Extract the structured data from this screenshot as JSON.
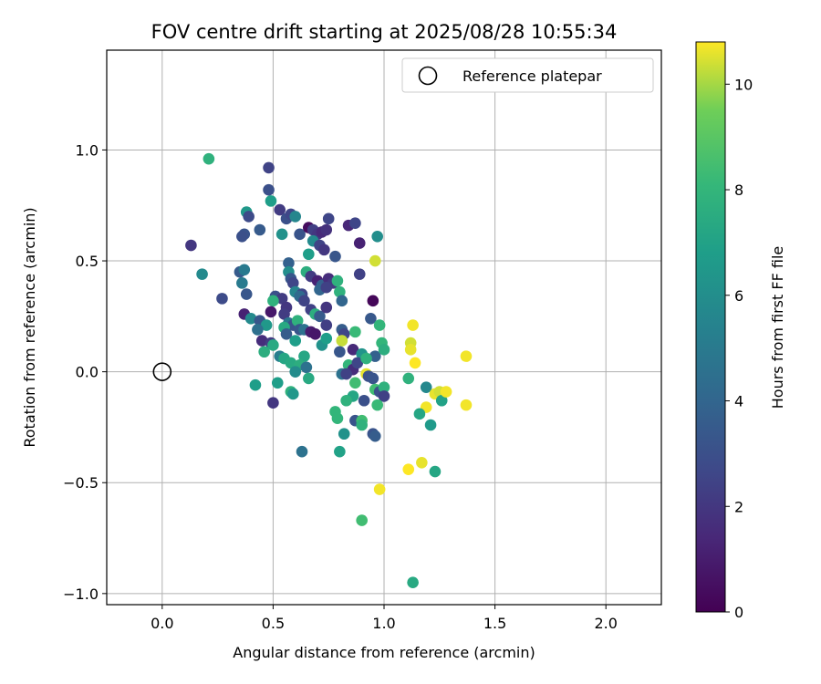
{
  "chart_data": {
    "type": "scatter",
    "title": "FOV centre drift starting at 2025/08/28 10:55:34",
    "xlabel": "Angular distance from reference (arcmin)",
    "ylabel": "Rotation from reference (arcmin)",
    "xlim": [
      -0.25,
      2.25
    ],
    "ylim": [
      -1.05,
      1.45
    ],
    "xticks": [
      0.0,
      0.5,
      1.0,
      1.5,
      2.0
    ],
    "xtick_labels": [
      "0.0",
      "0.5",
      "1.0",
      "1.5",
      "2.0"
    ],
    "yticks": [
      -1.0,
      -0.5,
      0.0,
      0.5,
      1.0
    ],
    "ytick_labels": [
      "−1.0",
      "−0.5",
      "0.0",
      "0.5",
      "1.0"
    ],
    "grid": true,
    "legend": {
      "location": "top-right",
      "entries": [
        "Reference platepar"
      ]
    },
    "reference_point": {
      "x": 0.0,
      "y": 0.0,
      "label": "Reference platepar"
    },
    "colorbar": {
      "label": "Hours from first FF file",
      "colormap": "viridis",
      "min": 0,
      "max": 10.8,
      "ticks": [
        0,
        2,
        4,
        6,
        8,
        10
      ],
      "tick_labels": [
        "0",
        "2",
        "4",
        "6",
        "8",
        "10"
      ]
    },
    "points": [
      {
        "x": 0.21,
        "y": 0.96,
        "h": 7.8
      },
      {
        "x": 0.48,
        "y": 0.92,
        "h": 2.5
      },
      {
        "x": 0.49,
        "y": 0.77,
        "h": 6.8
      },
      {
        "x": 0.48,
        "y": 0.82,
        "h": 3.0
      },
      {
        "x": 0.38,
        "y": 0.72,
        "h": 6.5
      },
      {
        "x": 0.39,
        "y": 0.7,
        "h": 2.8
      },
      {
        "x": 0.53,
        "y": 0.73,
        "h": 2.2
      },
      {
        "x": 0.56,
        "y": 0.69,
        "h": 3.0
      },
      {
        "x": 0.58,
        "y": 0.71,
        "h": 2.6
      },
      {
        "x": 0.6,
        "y": 0.7,
        "h": 5.6
      },
      {
        "x": 0.62,
        "y": 0.62,
        "h": 3.2
      },
      {
        "x": 0.44,
        "y": 0.64,
        "h": 3.5
      },
      {
        "x": 0.37,
        "y": 0.62,
        "h": 3.2
      },
      {
        "x": 0.36,
        "y": 0.61,
        "h": 3.0
      },
      {
        "x": 0.54,
        "y": 0.62,
        "h": 6.2
      },
      {
        "x": 0.13,
        "y": 0.57,
        "h": 2.0
      },
      {
        "x": 0.66,
        "y": 0.65,
        "h": 0.4
      },
      {
        "x": 0.68,
        "y": 0.64,
        "h": 2.3
      },
      {
        "x": 0.7,
        "y": 0.62,
        "h": 2.0
      },
      {
        "x": 0.72,
        "y": 0.63,
        "h": 1.5
      },
      {
        "x": 0.74,
        "y": 0.64,
        "h": 1.8
      },
      {
        "x": 0.75,
        "y": 0.69,
        "h": 2.6
      },
      {
        "x": 0.84,
        "y": 0.66,
        "h": 1.4
      },
      {
        "x": 0.87,
        "y": 0.67,
        "h": 2.6
      },
      {
        "x": 0.97,
        "y": 0.61,
        "h": 6.0
      },
      {
        "x": 0.89,
        "y": 0.58,
        "h": 1.2
      },
      {
        "x": 0.68,
        "y": 0.59,
        "h": 5.8
      },
      {
        "x": 0.71,
        "y": 0.57,
        "h": 2.5
      },
      {
        "x": 0.73,
        "y": 0.55,
        "h": 2.0
      },
      {
        "x": 0.66,
        "y": 0.53,
        "h": 6.8
      },
      {
        "x": 0.78,
        "y": 0.52,
        "h": 3.3
      },
      {
        "x": 0.96,
        "y": 0.5,
        "h": 10.4
      },
      {
        "x": 0.57,
        "y": 0.49,
        "h": 3.8
      },
      {
        "x": 0.18,
        "y": 0.44,
        "h": 5.8
      },
      {
        "x": 0.35,
        "y": 0.45,
        "h": 3.5
      },
      {
        "x": 0.37,
        "y": 0.46,
        "h": 5.0
      },
      {
        "x": 0.57,
        "y": 0.45,
        "h": 6.0
      },
      {
        "x": 0.58,
        "y": 0.42,
        "h": 3.3
      },
      {
        "x": 0.59,
        "y": 0.4,
        "h": 2.6
      },
      {
        "x": 0.65,
        "y": 0.45,
        "h": 7.6
      },
      {
        "x": 0.67,
        "y": 0.43,
        "h": 2.2
      },
      {
        "x": 0.7,
        "y": 0.41,
        "h": 1.2
      },
      {
        "x": 0.72,
        "y": 0.39,
        "h": 3.8
      },
      {
        "x": 0.75,
        "y": 0.42,
        "h": 1.6
      },
      {
        "x": 0.77,
        "y": 0.4,
        "h": 2.1
      },
      {
        "x": 0.79,
        "y": 0.41,
        "h": 7.8
      },
      {
        "x": 0.89,
        "y": 0.44,
        "h": 2.4
      },
      {
        "x": 0.36,
        "y": 0.4,
        "h": 5.0
      },
      {
        "x": 0.6,
        "y": 0.36,
        "h": 5.5
      },
      {
        "x": 0.63,
        "y": 0.35,
        "h": 2.6
      },
      {
        "x": 0.71,
        "y": 0.37,
        "h": 4.0
      },
      {
        "x": 0.74,
        "y": 0.38,
        "h": 2.4
      },
      {
        "x": 0.8,
        "y": 0.36,
        "h": 7.8
      },
      {
        "x": 0.38,
        "y": 0.35,
        "h": 3.3
      },
      {
        "x": 0.27,
        "y": 0.33,
        "h": 2.8
      },
      {
        "x": 0.51,
        "y": 0.34,
        "h": 3.0
      },
      {
        "x": 0.54,
        "y": 0.33,
        "h": 2.2
      },
      {
        "x": 0.5,
        "y": 0.32,
        "h": 7.8
      },
      {
        "x": 0.62,
        "y": 0.34,
        "h": 4.2
      },
      {
        "x": 0.64,
        "y": 0.32,
        "h": 2.5
      },
      {
        "x": 0.81,
        "y": 0.32,
        "h": 4.0
      },
      {
        "x": 0.95,
        "y": 0.32,
        "h": 0.2
      },
      {
        "x": 0.56,
        "y": 0.29,
        "h": 2.0
      },
      {
        "x": 0.67,
        "y": 0.28,
        "h": 2.4
      },
      {
        "x": 0.69,
        "y": 0.26,
        "h": 7.6
      },
      {
        "x": 0.71,
        "y": 0.25,
        "h": 3.5
      },
      {
        "x": 0.74,
        "y": 0.29,
        "h": 1.9
      },
      {
        "x": 0.37,
        "y": 0.26,
        "h": 1.2
      },
      {
        "x": 0.4,
        "y": 0.24,
        "h": 5.8
      },
      {
        "x": 0.44,
        "y": 0.23,
        "h": 3.3
      },
      {
        "x": 0.47,
        "y": 0.21,
        "h": 6.5
      },
      {
        "x": 0.49,
        "y": 0.27,
        "h": 0.8
      },
      {
        "x": 0.55,
        "y": 0.26,
        "h": 2.2
      },
      {
        "x": 0.57,
        "y": 0.22,
        "h": 4.8
      },
      {
        "x": 0.59,
        "y": 0.21,
        "h": 3.1
      },
      {
        "x": 0.61,
        "y": 0.23,
        "h": 7.8
      },
      {
        "x": 0.43,
        "y": 0.19,
        "h": 4.5
      },
      {
        "x": 0.55,
        "y": 0.2,
        "h": 7.4
      },
      {
        "x": 0.56,
        "y": 0.17,
        "h": 3.6
      },
      {
        "x": 0.62,
        "y": 0.19,
        "h": 3.3
      },
      {
        "x": 0.64,
        "y": 0.19,
        "h": 4.6
      },
      {
        "x": 0.67,
        "y": 0.18,
        "h": 1.0
      },
      {
        "x": 0.69,
        "y": 0.17,
        "h": 0.8
      },
      {
        "x": 0.74,
        "y": 0.21,
        "h": 2.3
      },
      {
        "x": 0.81,
        "y": 0.19,
        "h": 3.6
      },
      {
        "x": 0.82,
        "y": 0.17,
        "h": 2.6
      },
      {
        "x": 0.87,
        "y": 0.18,
        "h": 8.2
      },
      {
        "x": 0.94,
        "y": 0.24,
        "h": 3.4
      },
      {
        "x": 0.98,
        "y": 0.21,
        "h": 8.0
      },
      {
        "x": 0.45,
        "y": 0.14,
        "h": 1.6
      },
      {
        "x": 0.6,
        "y": 0.14,
        "h": 6.8
      },
      {
        "x": 0.72,
        "y": 0.12,
        "h": 6.2
      },
      {
        "x": 0.74,
        "y": 0.15,
        "h": 6.8
      },
      {
        "x": 0.81,
        "y": 0.14,
        "h": 10.3
      },
      {
        "x": 0.49,
        "y": 0.13,
        "h": 2.2
      },
      {
        "x": 0.5,
        "y": 0.12,
        "h": 7.4
      },
      {
        "x": 0.46,
        "y": 0.09,
        "h": 7.6
      },
      {
        "x": 0.53,
        "y": 0.07,
        "h": 5.2
      },
      {
        "x": 0.55,
        "y": 0.06,
        "h": 7.2
      },
      {
        "x": 0.64,
        "y": 0.07,
        "h": 7.2
      },
      {
        "x": 0.8,
        "y": 0.09,
        "h": 3.3
      },
      {
        "x": 0.86,
        "y": 0.1,
        "h": 1.5
      },
      {
        "x": 0.9,
        "y": 0.08,
        "h": 6.3
      },
      {
        "x": 0.96,
        "y": 0.07,
        "h": 3.8
      },
      {
        "x": 0.99,
        "y": 0.13,
        "h": 8.0
      },
      {
        "x": 1.0,
        "y": 0.1,
        "h": 7.6
      },
      {
        "x": 0.58,
        "y": 0.04,
        "h": 7.4
      },
      {
        "x": 0.62,
        "y": 0.03,
        "h": 7.6
      },
      {
        "x": 0.6,
        "y": 0.0,
        "h": 5.9
      },
      {
        "x": 0.65,
        "y": 0.02,
        "h": 4.6
      },
      {
        "x": 0.84,
        "y": 0.03,
        "h": 8.0
      },
      {
        "x": 0.86,
        "y": 0.01,
        "h": 1.6
      },
      {
        "x": 0.88,
        "y": 0.04,
        "h": 2.6
      },
      {
        "x": 0.92,
        "y": 0.06,
        "h": 7.8
      },
      {
        "x": 0.81,
        "y": -0.01,
        "h": 4.6
      },
      {
        "x": 0.83,
        "y": -0.01,
        "h": 2.4
      },
      {
        "x": 0.92,
        "y": -0.01,
        "h": 10.6
      },
      {
        "x": 0.42,
        "y": -0.06,
        "h": 6.8
      },
      {
        "x": 0.52,
        "y": -0.05,
        "h": 6.8
      },
      {
        "x": 0.66,
        "y": -0.03,
        "h": 7.4
      },
      {
        "x": 0.87,
        "y": -0.05,
        "h": 8.4
      },
      {
        "x": 0.93,
        "y": -0.02,
        "h": 3.0
      },
      {
        "x": 0.95,
        "y": -0.03,
        "h": 3.2
      },
      {
        "x": 0.96,
        "y": -0.08,
        "h": 8.4
      },
      {
        "x": 0.98,
        "y": -0.09,
        "h": 3.0
      },
      {
        "x": 1.0,
        "y": -0.07,
        "h": 7.8
      },
      {
        "x": 1.0,
        "y": -0.11,
        "h": 2.4
      },
      {
        "x": 0.58,
        "y": -0.09,
        "h": 7.8
      },
      {
        "x": 0.59,
        "y": -0.1,
        "h": 6.5
      },
      {
        "x": 0.86,
        "y": -0.11,
        "h": 7.2
      },
      {
        "x": 0.5,
        "y": -0.14,
        "h": 2.0
      },
      {
        "x": 0.83,
        "y": -0.13,
        "h": 7.8
      },
      {
        "x": 0.91,
        "y": -0.13,
        "h": 3.0
      },
      {
        "x": 0.97,
        "y": -0.15,
        "h": 8.2
      },
      {
        "x": 1.11,
        "y": -0.03,
        "h": 7.8
      },
      {
        "x": 1.12,
        "y": 0.13,
        "h": 10.4
      },
      {
        "x": 1.12,
        "y": 0.1,
        "h": 10.6
      },
      {
        "x": 1.13,
        "y": 0.21,
        "h": 10.7
      },
      {
        "x": 1.14,
        "y": 0.04,
        "h": 10.8
      },
      {
        "x": 1.19,
        "y": -0.07,
        "h": 5.7
      },
      {
        "x": 1.19,
        "y": -0.16,
        "h": 10.7
      },
      {
        "x": 1.23,
        "y": -0.1,
        "h": 10.6
      },
      {
        "x": 1.25,
        "y": -0.09,
        "h": 10.4
      },
      {
        "x": 1.26,
        "y": -0.13,
        "h": 7.0
      },
      {
        "x": 1.28,
        "y": -0.09,
        "h": 10.7
      },
      {
        "x": 1.37,
        "y": 0.07,
        "h": 10.7
      },
      {
        "x": 1.37,
        "y": -0.15,
        "h": 10.7
      },
      {
        "x": 1.16,
        "y": -0.19,
        "h": 7.2
      },
      {
        "x": 1.21,
        "y": -0.24,
        "h": 6.6
      },
      {
        "x": 0.78,
        "y": -0.18,
        "h": 8.0
      },
      {
        "x": 0.79,
        "y": -0.21,
        "h": 8.0
      },
      {
        "x": 0.87,
        "y": -0.22,
        "h": 3.2
      },
      {
        "x": 0.9,
        "y": -0.22,
        "h": 8.4
      },
      {
        "x": 0.9,
        "y": -0.24,
        "h": 7.8
      },
      {
        "x": 0.82,
        "y": -0.28,
        "h": 6.2
      },
      {
        "x": 0.95,
        "y": -0.28,
        "h": 3.2
      },
      {
        "x": 0.96,
        "y": -0.29,
        "h": 3.6
      },
      {
        "x": 0.63,
        "y": -0.36,
        "h": 4.6
      },
      {
        "x": 0.8,
        "y": -0.36,
        "h": 7.0
      },
      {
        "x": 1.11,
        "y": -0.44,
        "h": 10.8
      },
      {
        "x": 1.17,
        "y": -0.41,
        "h": 10.6
      },
      {
        "x": 1.23,
        "y": -0.45,
        "h": 7.2
      },
      {
        "x": 0.98,
        "y": -0.53,
        "h": 10.7
      },
      {
        "x": 0.9,
        "y": -0.67,
        "h": 8.4
      },
      {
        "x": 1.13,
        "y": -0.95,
        "h": 7.4
      }
    ]
  }
}
